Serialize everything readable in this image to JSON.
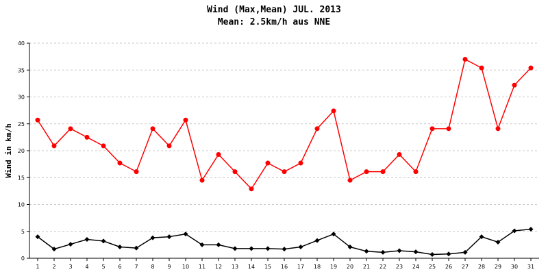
{
  "chart_data": {
    "type": "line",
    "title": "Wind (Max,Mean) JUL. 2013",
    "subtitle": "Mean: 2.5km/h aus NNE",
    "xlabel": "",
    "ylabel": "Wind in km/h",
    "x": [
      1,
      2,
      3,
      4,
      5,
      6,
      7,
      8,
      9,
      10,
      11,
      12,
      13,
      14,
      15,
      16,
      17,
      18,
      19,
      20,
      21,
      22,
      23,
      24,
      25,
      26,
      27,
      28,
      29,
      30,
      31
    ],
    "ylim": [
      0,
      40
    ],
    "yticks": [
      0,
      5,
      10,
      15,
      20,
      25,
      30,
      35,
      40
    ],
    "grid": true,
    "legend": "none",
    "series": [
      {
        "color": "#ff0000",
        "marker": "circle",
        "values": [
          25.7,
          20.9,
          24.1,
          22.5,
          20.9,
          17.7,
          16.1,
          24.1,
          20.9,
          25.7,
          14.5,
          19.3,
          16.1,
          12.9,
          17.7,
          16.1,
          17.7,
          24.1,
          27.4,
          14.5,
          16.1,
          16.1,
          19.3,
          16.1,
          24.1,
          24.1,
          37.0,
          35.4,
          24.1,
          32.2,
          35.4
        ]
      },
      {
        "color": "#000000",
        "marker": "diamond",
        "values": [
          4.0,
          1.7,
          2.6,
          3.5,
          3.2,
          2.1,
          1.9,
          3.8,
          4.0,
          4.5,
          2.5,
          2.5,
          1.8,
          1.8,
          1.8,
          1.7,
          2.1,
          3.3,
          4.5,
          2.1,
          1.3,
          1.1,
          1.4,
          1.2,
          0.7,
          0.8,
          1.1,
          4.0,
          3.0,
          5.1,
          5.4
        ]
      }
    ]
  }
}
